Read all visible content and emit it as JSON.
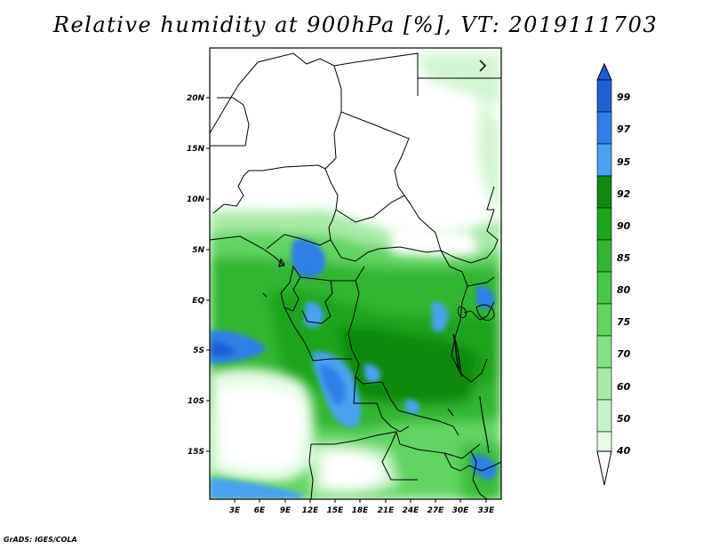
{
  "title": "Relative humidity at 900hPa [%], VT: 2019111703",
  "credit": "GrADS: IGES/COLA",
  "map": {
    "lat_ticks": [
      "20N",
      "15N",
      "10N",
      "5N",
      "EQ",
      "5S",
      "10S",
      "15S"
    ],
    "lon_ticks": [
      "3E",
      "6E",
      "9E",
      "12E",
      "15E",
      "18E",
      "21E",
      "24E",
      "27E",
      "30E",
      "33E"
    ]
  },
  "colorbar": {
    "labels": [
      "99",
      "97",
      "95",
      "92",
      "90",
      "85",
      "80",
      "75",
      "70",
      "60",
      "50",
      "40"
    ],
    "colors": [
      "#1f5fd6",
      "#2f7fe6",
      "#4aa2f0",
      "#0f8a0f",
      "#1ea51e",
      "#32b632",
      "#48c648",
      "#62d462",
      "#86e086",
      "#a8eaa8",
      "#c8f3c8",
      "#e6fbe6"
    ]
  }
}
